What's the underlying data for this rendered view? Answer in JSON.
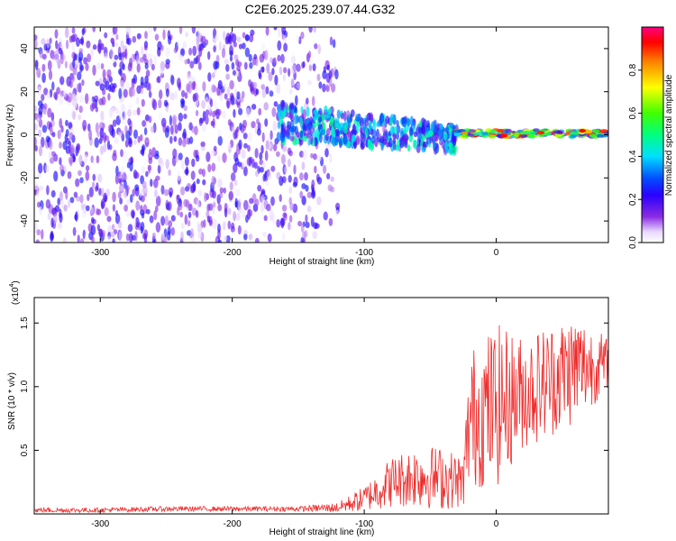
{
  "title": "C2E6.2025.239.07.44.G32",
  "chart_data": [
    {
      "type": "heatmap",
      "xlabel": "Height of straight line (km)",
      "ylabel": "Frequency (Hz)",
      "xlim": [
        -350,
        85
      ],
      "ylim": [
        -50,
        50
      ],
      "xticks": [
        -300,
        -200,
        -100,
        0
      ],
      "yticks": [
        -40,
        -20,
        0,
        20,
        40
      ],
      "colorbar": {
        "label": "Normalized spectral amplitude",
        "range": [
          0.0,
          1.0
        ],
        "ticks": [
          0.0,
          0.2,
          0.4,
          0.6,
          0.8
        ],
        "tick_labels": [
          "0.0",
          "0.2",
          "0.4",
          "0.6",
          "0.8"
        ]
      },
      "regions": [
        {
          "x": [
            -350,
            -120
          ],
          "freq": [
            -50,
            50
          ],
          "amplitude": [
            0.02,
            0.25
          ],
          "description": "broadband noise"
        },
        {
          "x": [
            -165,
            -30
          ],
          "freq": [
            -12,
            12
          ],
          "amplitude": [
            0.1,
            0.5
          ],
          "description": "descending signal band"
        },
        {
          "x": [
            -30,
            85
          ],
          "freq": [
            -2,
            3
          ],
          "amplitude": [
            0.4,
            0.95
          ],
          "description": "steady narrow line near 0 Hz"
        }
      ]
    },
    {
      "type": "line",
      "xlabel": "Height of straight line (km)",
      "ylabel": "SNR (10 * v/v)",
      "multiplier_label": "(x10",
      "multiplier_exponent": "4",
      "multiplier_close": ")",
      "xlim": [
        -350,
        85
      ],
      "ylim": [
        0,
        1.7
      ],
      "xticks": [
        -300,
        -200,
        -100,
        0
      ],
      "yticks": [
        0.5,
        1.0,
        1.5
      ],
      "ytick_labels": [
        "0.5",
        "1.0",
        "1.5"
      ],
      "series": [
        {
          "name": "SNR",
          "color": "#ee2a2a",
          "x": [
            -350,
            -300,
            -250,
            -200,
            -150,
            -120,
            -100,
            -80,
            -60,
            -40,
            -25,
            -20,
            -10,
            0,
            20,
            40,
            60,
            85
          ],
          "values": [
            0.03,
            0.03,
            0.04,
            0.04,
            0.04,
            0.05,
            0.12,
            0.25,
            0.3,
            0.28,
            0.25,
            0.75,
            0.8,
            0.85,
            0.95,
            1.05,
            1.15,
            1.18
          ],
          "spread": [
            0.02,
            0.02,
            0.02,
            0.02,
            0.02,
            0.04,
            0.1,
            0.2,
            0.25,
            0.25,
            0.2,
            0.55,
            0.6,
            0.65,
            0.45,
            0.45,
            0.45,
            0.2
          ]
        }
      ]
    }
  ]
}
